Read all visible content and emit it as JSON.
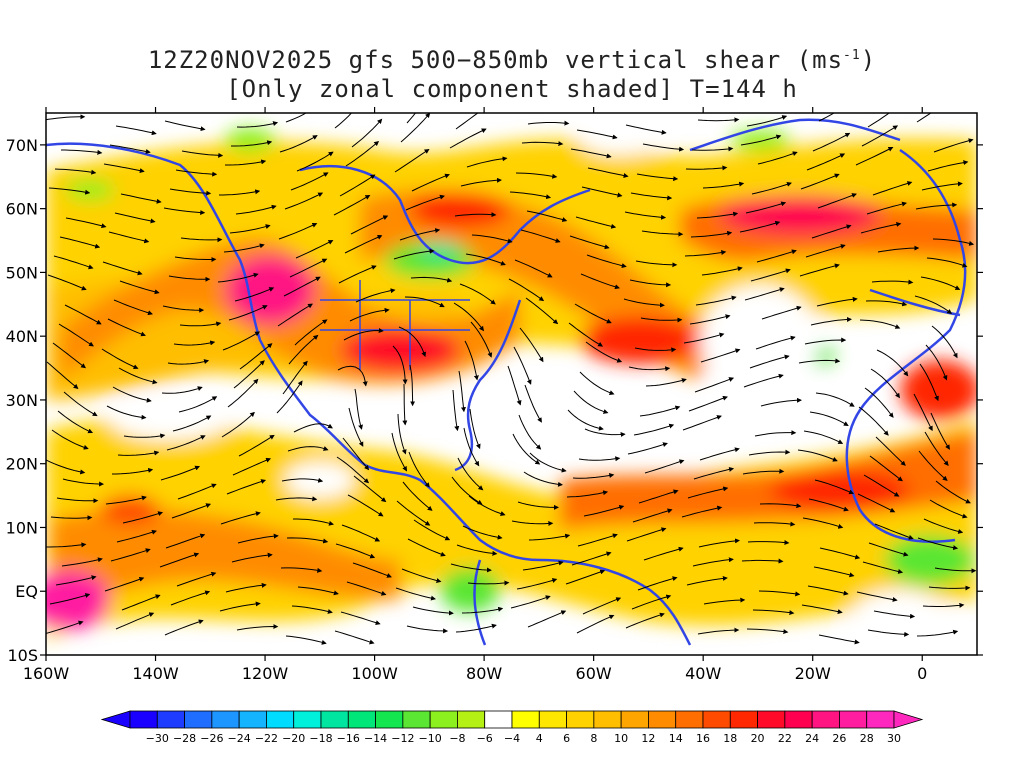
{
  "title": {
    "line1_prefix": "12Z20NOV2025 gfs 500−850mb vertical shear (ms",
    "line1_sup": "-1",
    "line1_suffix": ")",
    "line2": "[Only zonal component shaded] T=144 h"
  },
  "axes": {
    "lat_labels": [
      "70N",
      "60N",
      "50N",
      "40N",
      "30N",
      "20N",
      "10N",
      "EQ",
      "10S"
    ],
    "lat_values": [
      70,
      60,
      50,
      40,
      30,
      20,
      10,
      0,
      -10
    ],
    "lon_labels": [
      "160W",
      "140W",
      "120W",
      "100W",
      "80W",
      "60W",
      "40W",
      "20W",
      "0"
    ],
    "lon_values": [
      -160,
      -140,
      -120,
      -100,
      -80,
      -60,
      -40,
      -20,
      0
    ],
    "lon_range": [
      -160,
      10
    ],
    "lat_range": [
      -10,
      75
    ]
  },
  "colorbar": {
    "labels": [
      "-30",
      "-28",
      "-26",
      "-24",
      "-22",
      "-20",
      "-18",
      "-16",
      "-14",
      "-12",
      "-10",
      "-8",
      "-6",
      "-4",
      "4",
      "6",
      "8",
      "10",
      "12",
      "14",
      "16",
      "18",
      "20",
      "22",
      "24",
      "26",
      "28",
      "30"
    ],
    "colors": [
      "#1a00ff",
      "#1e3cff",
      "#1f6eff",
      "#1e96ff",
      "#14b4ff",
      "#00dcff",
      "#00f0dc",
      "#00e6a0",
      "#00e678",
      "#14e650",
      "#5ae632",
      "#8cf01e",
      "#b4f014",
      "#ffffff",
      "#ffff00",
      "#ffe600",
      "#ffd200",
      "#ffbe00",
      "#ffa500",
      "#ff8c00",
      "#ff6e00",
      "#ff4b00",
      "#ff2800",
      "#ff0a28",
      "#ff0050",
      "#ff1482",
      "#ff1ea0",
      "#ff28be"
    ],
    "left_arrow_color": "#1a00ff",
    "right_arrow_color": "#ff28be"
  },
  "colors": {
    "coastline": "#3246e6",
    "streamline": "#000000"
  }
}
